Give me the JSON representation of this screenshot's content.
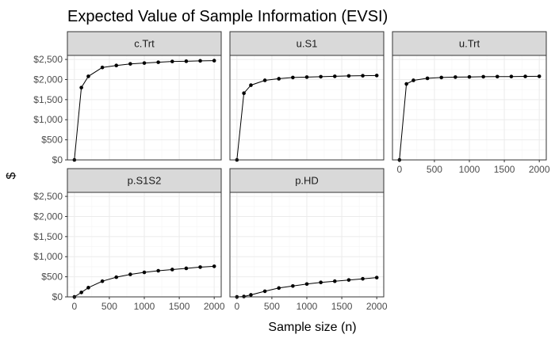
{
  "chart_data": {
    "type": "line",
    "title": "Expected Value of Sample Information (EVSI)",
    "xlabel": "Sample size (n)",
    "ylabel": "$",
    "facet_layout": "3 columns x 2 rows, free x axis per facet",
    "x_ticks": [
      0,
      500,
      1000,
      1500,
      2000
    ],
    "x_range": [
      0,
      2000
    ],
    "y_ticks": [
      0,
      500,
      1000,
      1500,
      2000,
      2500
    ],
    "y_tick_labels": [
      "$0",
      "$500",
      "$1,000",
      "$1,500",
      "$2,000",
      "$2,500"
    ],
    "y_range": [
      0,
      2600
    ],
    "grid": true,
    "x": [
      0,
      100,
      200,
      400,
      600,
      800,
      1000,
      1200,
      1400,
      1600,
      1800,
      2000
    ],
    "series": [
      {
        "name": "c.Trt",
        "values": [
          0,
          1800,
          2080,
          2300,
          2350,
          2390,
          2410,
          2430,
          2450,
          2455,
          2465,
          2470
        ]
      },
      {
        "name": "u.S1",
        "values": [
          0,
          1660,
          1860,
          1980,
          2020,
          2050,
          2060,
          2070,
          2080,
          2090,
          2095,
          2100
        ]
      },
      {
        "name": "u.Trt",
        "values": [
          0,
          1890,
          1980,
          2030,
          2050,
          2060,
          2065,
          2070,
          2072,
          2075,
          2078,
          2080
        ]
      },
      {
        "name": "p.S1S2",
        "values": [
          0,
          110,
          230,
          390,
          490,
          560,
          610,
          650,
          680,
          710,
          740,
          760
        ]
      },
      {
        "name": "p.HD",
        "values": [
          0,
          10,
          50,
          140,
          220,
          270,
          320,
          360,
          390,
          420,
          450,
          480
        ]
      }
    ],
    "colors": {
      "line": "#000000",
      "strip_bg": "#d9d9d9",
      "strip_border": "#333333",
      "grid_major": "#ebebeb",
      "grid_minor": "#f5f5f5",
      "panel_border": "#333333",
      "tick_text": "#4d4d4d"
    }
  }
}
